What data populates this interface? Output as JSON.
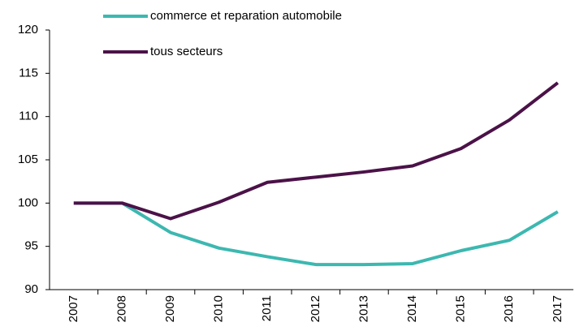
{
  "chart_data": {
    "type": "line",
    "categories": [
      "2007",
      "2008",
      "2009",
      "2010",
      "2011",
      "2012",
      "2013",
      "2014",
      "2015",
      "2016",
      "2017"
    ],
    "series": [
      {
        "name": "commerce et reparation automobile",
        "color": "#3cb8b0",
        "values": [
          100,
          100,
          96.6,
          94.8,
          93.8,
          92.9,
          92.9,
          93.0,
          94.5,
          95.7,
          99.0
        ]
      },
      {
        "name": "tous secteurs",
        "color": "#4b1248",
        "values": [
          100,
          100,
          98.2,
          100.1,
          102.4,
          103.0,
          103.6,
          104.3,
          106.3,
          109.6,
          113.9
        ]
      }
    ],
    "ylim": [
      90,
      120
    ],
    "yticks": [
      90,
      95,
      100,
      105,
      110,
      115,
      120
    ],
    "grid": false,
    "legend": "top-left"
  }
}
